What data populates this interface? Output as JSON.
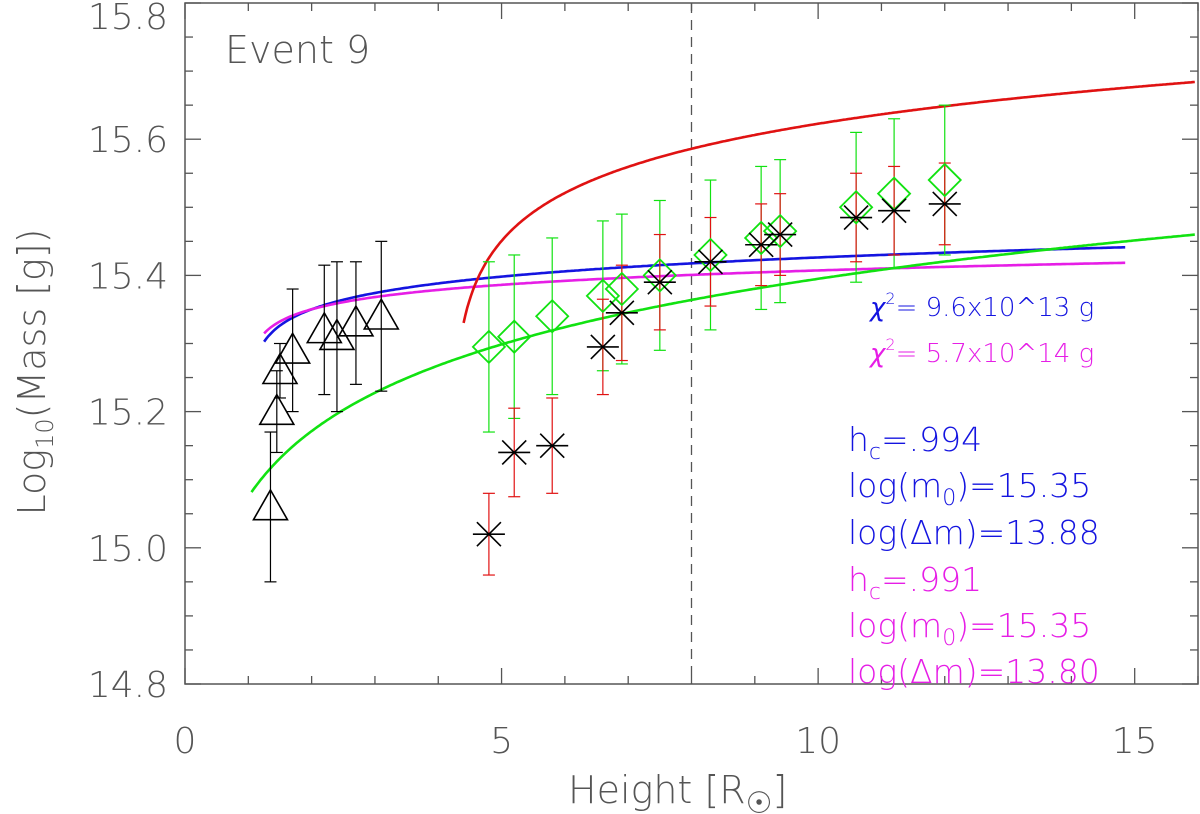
{
  "chart_data": {
    "type": "scatter",
    "title": "Event 9",
    "xlabel": "Height [R",
    "xlabel_suffix": "]",
    "ylabel": "Log",
    "ylabel_sub": "10",
    "ylabel_rest": "(Mass [g])",
    "xlim": [
      0,
      16
    ],
    "ylim": [
      14.8,
      15.8
    ],
    "xticks": [
      0,
      5,
      10,
      15
    ],
    "xtick_labels": [
      "0",
      "5",
      "10",
      "15"
    ],
    "yticks": [
      14.8,
      15.0,
      15.2,
      15.4,
      15.6,
      15.8
    ],
    "ytick_labels": [
      "14.8",
      "15.0",
      "15.2",
      "15.4",
      "15.6",
      "15.8"
    ],
    "vline_x": 8.0,
    "colors": {
      "black": "#000000",
      "blue": "#1414e0",
      "magenta": "#e61ee6",
      "green": "#11e211",
      "red": "#e01212",
      "axis": "#555555"
    },
    "series": [
      {
        "name": "triangles",
        "marker": "triangle",
        "color": "#000000",
        "points": [
          {
            "x": 1.35,
            "y": 15.06,
            "err": 0.11
          },
          {
            "x": 1.45,
            "y": 15.2,
            "err": 0.06
          },
          {
            "x": 1.5,
            "y": 15.26,
            "err": 0.04
          },
          {
            "x": 1.7,
            "y": 15.29,
            "err": 0.09
          },
          {
            "x": 2.2,
            "y": 15.32,
            "err": 0.095
          },
          {
            "x": 2.4,
            "y": 15.31,
            "err": 0.11
          },
          {
            "x": 2.7,
            "y": 15.33,
            "err": 0.09
          },
          {
            "x": 3.1,
            "y": 15.34,
            "err": 0.11
          }
        ]
      },
      {
        "name": "diamonds",
        "marker": "diamond",
        "color": "#11e211",
        "points": [
          {
            "x": 4.8,
            "y": 15.295,
            "err": 0.125
          },
          {
            "x": 5.2,
            "y": 15.31,
            "err": 0.12
          },
          {
            "x": 5.8,
            "y": 15.34,
            "err": 0.115
          },
          {
            "x": 6.6,
            "y": 15.37,
            "err": 0.11
          },
          {
            "x": 6.9,
            "y": 15.38,
            "err": 0.11
          },
          {
            "x": 7.5,
            "y": 15.4,
            "err": 0.11
          },
          {
            "x": 8.3,
            "y": 15.43,
            "err": 0.11
          },
          {
            "x": 9.1,
            "y": 15.455,
            "err": 0.105
          },
          {
            "x": 9.4,
            "y": 15.465,
            "err": 0.105
          },
          {
            "x": 10.6,
            "y": 15.5,
            "err": 0.11
          },
          {
            "x": 11.2,
            "y": 15.52,
            "err": 0.11
          },
          {
            "x": 12.0,
            "y": 15.54,
            "err": 0.11
          }
        ]
      },
      {
        "name": "asterisks",
        "marker": "asterisk",
        "color": "#000000",
        "err_color": "#e01212",
        "points": [
          {
            "x": 4.8,
            "y": 15.02,
            "err": 0.06
          },
          {
            "x": 5.2,
            "y": 15.14,
            "err": 0.065
          },
          {
            "x": 5.8,
            "y": 15.15,
            "err": 0.07
          },
          {
            "x": 6.6,
            "y": 15.295,
            "err": 0.07
          },
          {
            "x": 6.9,
            "y": 15.345,
            "err": 0.07
          },
          {
            "x": 7.5,
            "y": 15.39,
            "err": 0.07
          },
          {
            "x": 8.3,
            "y": 15.42,
            "err": 0.065
          },
          {
            "x": 9.1,
            "y": 15.445,
            "err": 0.06
          },
          {
            "x": 9.4,
            "y": 15.46,
            "err": 0.06
          },
          {
            "x": 10.6,
            "y": 15.485,
            "err": 0.065
          },
          {
            "x": 11.2,
            "y": 15.495,
            "err": 0.065
          },
          {
            "x": 12.0,
            "y": 15.505,
            "err": 0.06
          }
        ]
      }
    ],
    "curves": [
      {
        "name": "blue fit",
        "color": "#1414e0",
        "model": "log",
        "a": 15.35,
        "b": 0.08,
        "hc": 0.994,
        "x_start": 1.25,
        "x_end": 14.85
      },
      {
        "name": "magenta fit",
        "color": "#e61ee6",
        "model": "log",
        "a": 15.35,
        "b": 0.06,
        "hc": 0.991,
        "x_start": 1.25,
        "x_end": 14.85
      },
      {
        "name": "green fit",
        "color": "#11e211",
        "model": "power",
        "a": 15.075,
        "b": 0.32,
        "x_start": 1.05,
        "x_end": 15.95
      },
      {
        "name": "red fit",
        "color": "#e01212",
        "model": "log",
        "a": 15.47,
        "b": 0.2,
        "hc": 4.2,
        "x_start": 4.4,
        "x_end": 15.95
      }
    ],
    "annotations": {
      "chi_blue": {
        "prefix": "χ",
        "sup": "2",
        "text": "= 9.6x10^13 g"
      },
      "chi_magenta": {
        "prefix": "χ",
        "sup": "2",
        "text": "= 5.7x10^14 g"
      },
      "blue_params": [
        {
          "base": "h",
          "sub": "c",
          "rest": "=.994"
        },
        {
          "base": "log(m",
          "sub": "0",
          "rest": ")=15.35"
        },
        {
          "base": "log(Δm)=13.88",
          "sub": "",
          "rest": ""
        }
      ],
      "magenta_params": [
        {
          "base": "h",
          "sub": "c",
          "rest": "=.991"
        },
        {
          "base": "log(m",
          "sub": "0",
          "rest": ")=15.35"
        },
        {
          "base": "log(Δm)=13.80",
          "sub": "",
          "rest": ""
        }
      ]
    }
  }
}
